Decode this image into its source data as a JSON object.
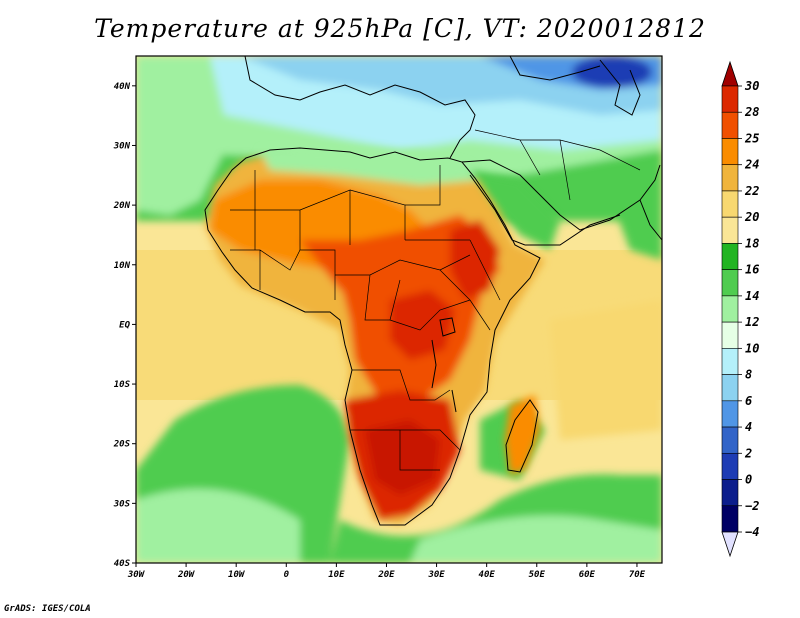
{
  "title": "Temperature at 925hPa [C], VT: 2020012812",
  "credit": "GrADS: IGES/COLA",
  "map": {
    "projection": "latlon",
    "lon_range": [
      -30,
      75
    ],
    "lat_range": [
      -40,
      45
    ],
    "lat_ticks": [
      {
        "value": 40,
        "label": "40N"
      },
      {
        "value": 30,
        "label": "30N"
      },
      {
        "value": 20,
        "label": "20N"
      },
      {
        "value": 10,
        "label": "10N"
      },
      {
        "value": 0,
        "label": "EQ"
      },
      {
        "value": -10,
        "label": "10S"
      },
      {
        "value": -20,
        "label": "20S"
      },
      {
        "value": -30,
        "label": "30S"
      },
      {
        "value": -40,
        "label": "40S"
      }
    ],
    "lon_ticks": [
      {
        "value": -30,
        "label": "30W"
      },
      {
        "value": -20,
        "label": "20W"
      },
      {
        "value": -10,
        "label": "10W"
      },
      {
        "value": 0,
        "label": "0"
      },
      {
        "value": 10,
        "label": "10E"
      },
      {
        "value": 20,
        "label": "20E"
      },
      {
        "value": 30,
        "label": "30E"
      },
      {
        "value": 40,
        "label": "40E"
      },
      {
        "value": 50,
        "label": "50E"
      },
      {
        "value": 60,
        "label": "60E"
      },
      {
        "value": 70,
        "label": "70E"
      }
    ]
  },
  "colorbar": {
    "labels": [
      "30",
      "28",
      "25",
      "24",
      "22",
      "20",
      "18",
      "16",
      "14",
      "12",
      "10",
      "8",
      "6",
      "4",
      "2",
      "0",
      "−2",
      "−4"
    ],
    "colors": [
      "#a00000",
      "#dc2800",
      "#f05000",
      "#fa8c00",
      "#f0b43c",
      "#f8d870",
      "#fae696",
      "#22b422",
      "#50cc50",
      "#a0f0a0",
      "#e6ffe6",
      "#b4f0fa",
      "#8cd2f0",
      "#5096e6",
      "#3264c8",
      "#1e3cb4",
      "#0c1e8c",
      "#000064",
      "#e1e1ff"
    ]
  }
}
